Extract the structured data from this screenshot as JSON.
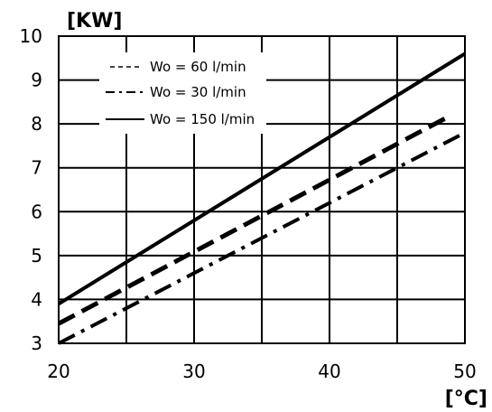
{
  "chart_data": {
    "type": "line",
    "xlabel": "[°C]",
    "ylabel": "[KW]",
    "xlim": [
      20,
      50
    ],
    "ylim": [
      3,
      10
    ],
    "xticks": [
      20,
      30,
      40,
      50
    ],
    "yticks": [
      3,
      4,
      5,
      6,
      7,
      8,
      9,
      10
    ],
    "x_grid": [
      20,
      25,
      30,
      35,
      40,
      45,
      50
    ],
    "y_grid": [
      3,
      4,
      5,
      6,
      7,
      8,
      9,
      10
    ],
    "grid": true,
    "legend_position": "top-left",
    "series": [
      {
        "name": "Wo = 60 l/min",
        "style": "dashed",
        "color": "#000000",
        "x": [
          20,
          49
        ],
        "y": [
          3.45,
          8.2
        ]
      },
      {
        "name": "Wo = 30 l/min",
        "style": "dashdot",
        "color": "#000000",
        "x": [
          20,
          50
        ],
        "y": [
          3.0,
          7.8
        ]
      },
      {
        "name": "Wo = 150 l/min",
        "style": "solid",
        "color": "#000000",
        "x": [
          20,
          50
        ],
        "y": [
          3.9,
          9.6
        ]
      }
    ]
  }
}
